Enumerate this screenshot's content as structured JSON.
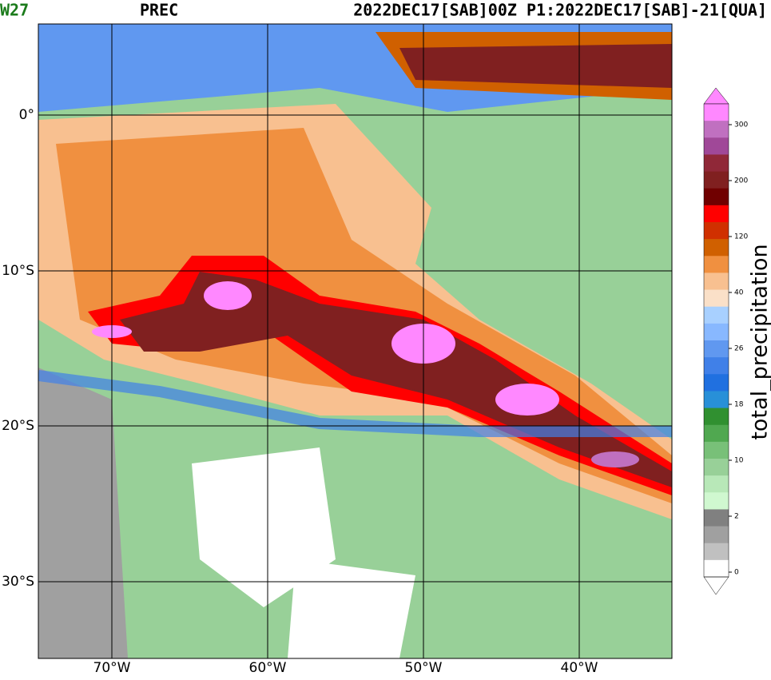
{
  "header": {
    "model": "W27",
    "variable": "PREC",
    "valid_time": "2022DEC17[SAB]00Z P1:2022DEC17[SAB]-21[QUA]"
  },
  "map": {
    "lat_labels": [
      "0°",
      "10°S",
      "20°S",
      "30°S"
    ],
    "lon_labels": [
      "70°W",
      "60°W",
      "50°W",
      "40°W"
    ]
  },
  "colorbar": {
    "label": "total_precipitation",
    "ticks": [
      300,
      200,
      120,
      40,
      26,
      18,
      10,
      2,
      0
    ],
    "colors": [
      "#ff88ff",
      "#c070c0",
      "#a04898",
      "#902838",
      "#802020",
      "#700000",
      "#ff0000",
      "#d03000",
      "#d06000",
      "#f09040",
      "#f8c090",
      "#fae0c8",
      "#a8d0ff",
      "#88b8ff",
      "#6098f0",
      "#4080e8",
      "#2070e0",
      "#2890d8",
      "#309030",
      "#50a850",
      "#78c078",
      "#98d098",
      "#b8e8b8",
      "#d0f8d0",
      "#808080",
      "#a0a0a0",
      "#c0c0c0",
      "#ffffff"
    ]
  }
}
